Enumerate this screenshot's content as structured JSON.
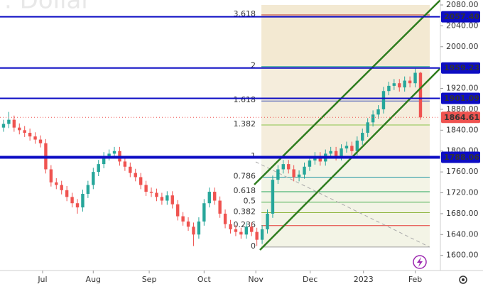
{
  "chart_data": {
    "type": "candlestick",
    "watermark": ". Dollar",
    "xlim": [
      -0.67,
      82.77
    ],
    "xticks": [
      {
        "value": 7.4,
        "label": "Jul"
      },
      {
        "value": 17,
        "label": "Aug"
      },
      {
        "value": 27.6,
        "label": "Sep"
      },
      {
        "value": 38,
        "label": "Oct"
      },
      {
        "value": 47.8,
        "label": "Nov"
      },
      {
        "value": 58.1,
        "label": "Dec"
      },
      {
        "value": 68.2,
        "label": "2023"
      },
      {
        "value": 78,
        "label": "Feb"
      }
    ],
    "ylim": [
      1571,
      2080
    ],
    "yticks": [
      {
        "value": 1600,
        "label": "1600.00"
      },
      {
        "value": 1640,
        "label": "1640.00"
      },
      {
        "value": 1680,
        "label": "1680.00"
      },
      {
        "value": 1720,
        "label": "1720.00"
      },
      {
        "value": 1760,
        "label": "1760.00"
      },
      {
        "value": 1800,
        "label": "1800.00"
      },
      {
        "value": 1840,
        "label": "1840.00"
      },
      {
        "value": 1880,
        "label": "1880.00"
      },
      {
        "value": 1920,
        "label": "1920.00"
      },
      {
        "value": 2000,
        "label": "2000.00"
      },
      {
        "value": 2040,
        "label": "2040.00"
      },
      {
        "value": 2080,
        "label": "2080.00"
      }
    ],
    "up_color": "#26a69a",
    "down_color": "#ef5350",
    "open": [
      1845,
      1852,
      1860,
      1845,
      1840,
      1835,
      1828,
      1822,
      1815,
      1765,
      1740,
      1735,
      1725,
      1712,
      1700,
      1692,
      1718,
      1735,
      1760,
      1775,
      1790,
      1795,
      1800,
      1780,
      1770,
      1758,
      1750,
      1735,
      1722,
      1720,
      1712,
      1705,
      1715,
      1698,
      1675,
      1665,
      1655,
      1640,
      1665,
      1700,
      1722,
      1705,
      1680,
      1660,
      1650,
      1645,
      1640,
      1655,
      1645,
      1630,
      1650,
      1680,
      1745,
      1765,
      1775,
      1765,
      1750,
      1755,
      1770,
      1782,
      1790,
      1780,
      1795,
      1800,
      1790,
      1805,
      1810,
      1800,
      1820,
      1835,
      1855,
      1870,
      1880,
      1915,
      1925,
      1930,
      1922,
      1935,
      1930,
      1950
    ],
    "high": [
      1860,
      1875,
      1868,
      1853,
      1848,
      1843,
      1836,
      1830,
      1823,
      1773,
      1748,
      1743,
      1733,
      1720,
      1708,
      1726,
      1743,
      1768,
      1783,
      1798,
      1803,
      1808,
      1808,
      1788,
      1778,
      1766,
      1758,
      1743,
      1730,
      1728,
      1720,
      1723,
      1723,
      1706,
      1683,
      1673,
      1663,
      1673,
      1708,
      1730,
      1730,
      1713,
      1688,
      1668,
      1658,
      1653,
      1663,
      1663,
      1653,
      1658,
      1688,
      1753,
      1773,
      1783,
      1783,
      1773,
      1763,
      1778,
      1790,
      1798,
      1798,
      1803,
      1808,
      1808,
      1813,
      1818,
      1818,
      1828,
      1843,
      1863,
      1878,
      1888,
      1923,
      1933,
      1938,
      1938,
      1943,
      1943,
      1958,
      1952
    ],
    "low": [
      1837,
      1844,
      1837,
      1832,
      1827,
      1820,
      1814,
      1807,
      1757,
      1732,
      1727,
      1717,
      1704,
      1692,
      1680,
      1684,
      1710,
      1727,
      1752,
      1767,
      1782,
      1787,
      1772,
      1762,
      1750,
      1742,
      1727,
      1714,
      1712,
      1704,
      1697,
      1697,
      1690,
      1667,
      1657,
      1647,
      1618,
      1632,
      1657,
      1692,
      1697,
      1672,
      1652,
      1642,
      1637,
      1632,
      1632,
      1637,
      1618,
      1622,
      1642,
      1672,
      1737,
      1757,
      1757,
      1742,
      1742,
      1747,
      1762,
      1774,
      1772,
      1772,
      1787,
      1782,
      1782,
      1797,
      1792,
      1792,
      1812,
      1827,
      1847,
      1862,
      1872,
      1907,
      1917,
      1914,
      1914,
      1922,
      1922,
      1860
    ],
    "close": [
      1852,
      1860,
      1845,
      1840,
      1835,
      1828,
      1822,
      1815,
      1765,
      1740,
      1735,
      1725,
      1712,
      1700,
      1692,
      1718,
      1735,
      1760,
      1775,
      1790,
      1795,
      1800,
      1780,
      1770,
      1758,
      1750,
      1735,
      1722,
      1720,
      1712,
      1705,
      1715,
      1698,
      1675,
      1665,
      1655,
      1640,
      1665,
      1700,
      1722,
      1705,
      1680,
      1660,
      1650,
      1645,
      1640,
      1655,
      1645,
      1630,
      1650,
      1680,
      1745,
      1765,
      1775,
      1765,
      1750,
      1755,
      1770,
      1782,
      1790,
      1780,
      1795,
      1800,
      1790,
      1805,
      1810,
      1800,
      1820,
      1835,
      1855,
      1870,
      1880,
      1915,
      1925,
      1930,
      1922,
      1935,
      1930,
      1950,
      1864.61
    ],
    "fib_levels": [
      {
        "level": "3.618",
        "value": 2061,
        "color": "#c0392b"
      },
      {
        "level": "2",
        "value": 1962,
        "color": "#26a69a"
      },
      {
        "level": "1.618",
        "value": 1896,
        "color": "#3f51b5"
      },
      {
        "level": "1.382",
        "value": 1850,
        "color": "#8bc34a"
      },
      {
        "level": "1",
        "value": 1789,
        "color": "#9e9e9e"
      },
      {
        "level": "0.786",
        "value": 1750,
        "color": "#2196a3"
      },
      {
        "level": "0.618",
        "value": 1722,
        "color": "#26a65a"
      },
      {
        "level": "0.5",
        "value": 1702,
        "color": "#4caf50"
      },
      {
        "level": "0.382",
        "value": 1682,
        "color": "#8bb33a"
      },
      {
        "level": "0.236",
        "value": 1657,
        "color": "#e53935"
      },
      {
        "level": "0",
        "value": 1616,
        "color": "#9e9e9e"
      }
    ],
    "price_lines": [
      {
        "value": 2057.4,
        "label": "2057.40"
      },
      {
        "value": 1959.23,
        "label": "1959.23"
      },
      {
        "value": 1901.09,
        "label": "1901.09"
      },
      {
        "value": 1788.06,
        "label": "1788.06"
      }
    ],
    "line_color": "#0d0dc4",
    "last_price": 1864.61
  }
}
